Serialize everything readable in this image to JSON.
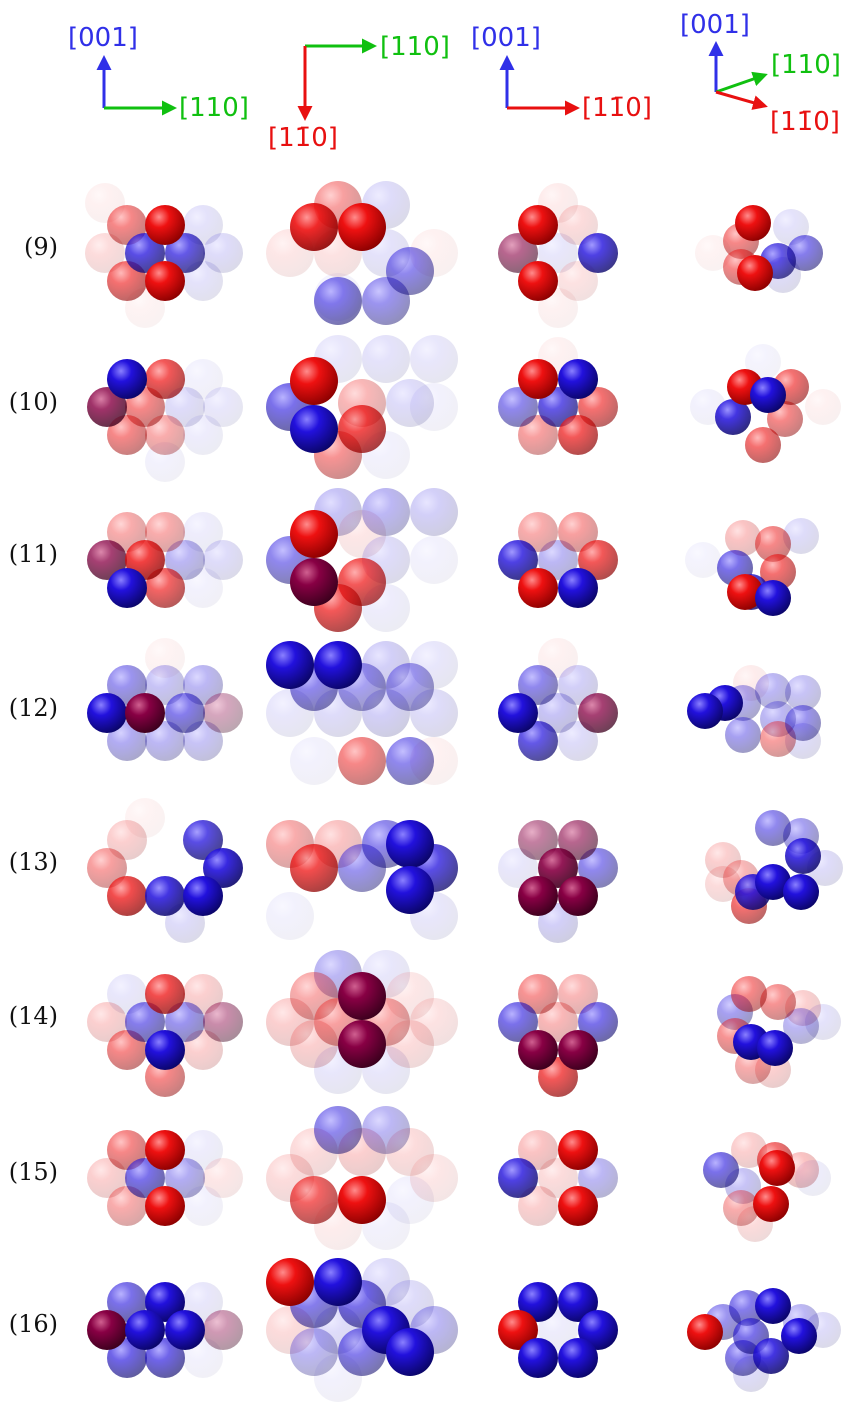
{
  "axes": [
    {
      "vectors": [
        {
          "label": "[001]",
          "color": "#3030e8",
          "dir": [
            0,
            -1
          ]
        },
        {
          "label": "[110]",
          "color": "#10c010",
          "dir": [
            1,
            0
          ]
        }
      ]
    },
    {
      "vectors": [
        {
          "label": "[110]",
          "color": "#10c010",
          "dir": [
            1,
            0
          ]
        },
        {
          "label": "[11̄0]",
          "color": "#e81010",
          "dir": [
            0,
            1
          ]
        }
      ]
    },
    {
      "vectors": [
        {
          "label": "[001]",
          "color": "#3030e8",
          "dir": [
            0,
            -1
          ]
        },
        {
          "label": "[11̄0]",
          "color": "#e81010",
          "dir": [
            1,
            0
          ]
        }
      ]
    },
    {
      "vectors": [
        {
          "label": "[001]",
          "color": "#3030e8",
          "dir": [
            0,
            -1
          ]
        },
        {
          "label": "[110]",
          "color": "#10c010",
          "dir": [
            0.94,
            -0.34
          ]
        },
        {
          "label": "[11̄0]",
          "color": "#e81010",
          "dir": [
            0.95,
            0.3
          ]
        }
      ]
    }
  ],
  "rows": [
    {
      "label": "(9)"
    },
    {
      "label": "(10)"
    },
    {
      "label": "(11)"
    },
    {
      "label": "(12)"
    },
    {
      "label": "(13)"
    },
    {
      "label": "(14)"
    },
    {
      "label": "(15)"
    },
    {
      "label": "(16)"
    }
  ],
  "colors": {
    "red": "#ee1111",
    "blue": "#2211dd",
    "purple": "#880044"
  }
}
